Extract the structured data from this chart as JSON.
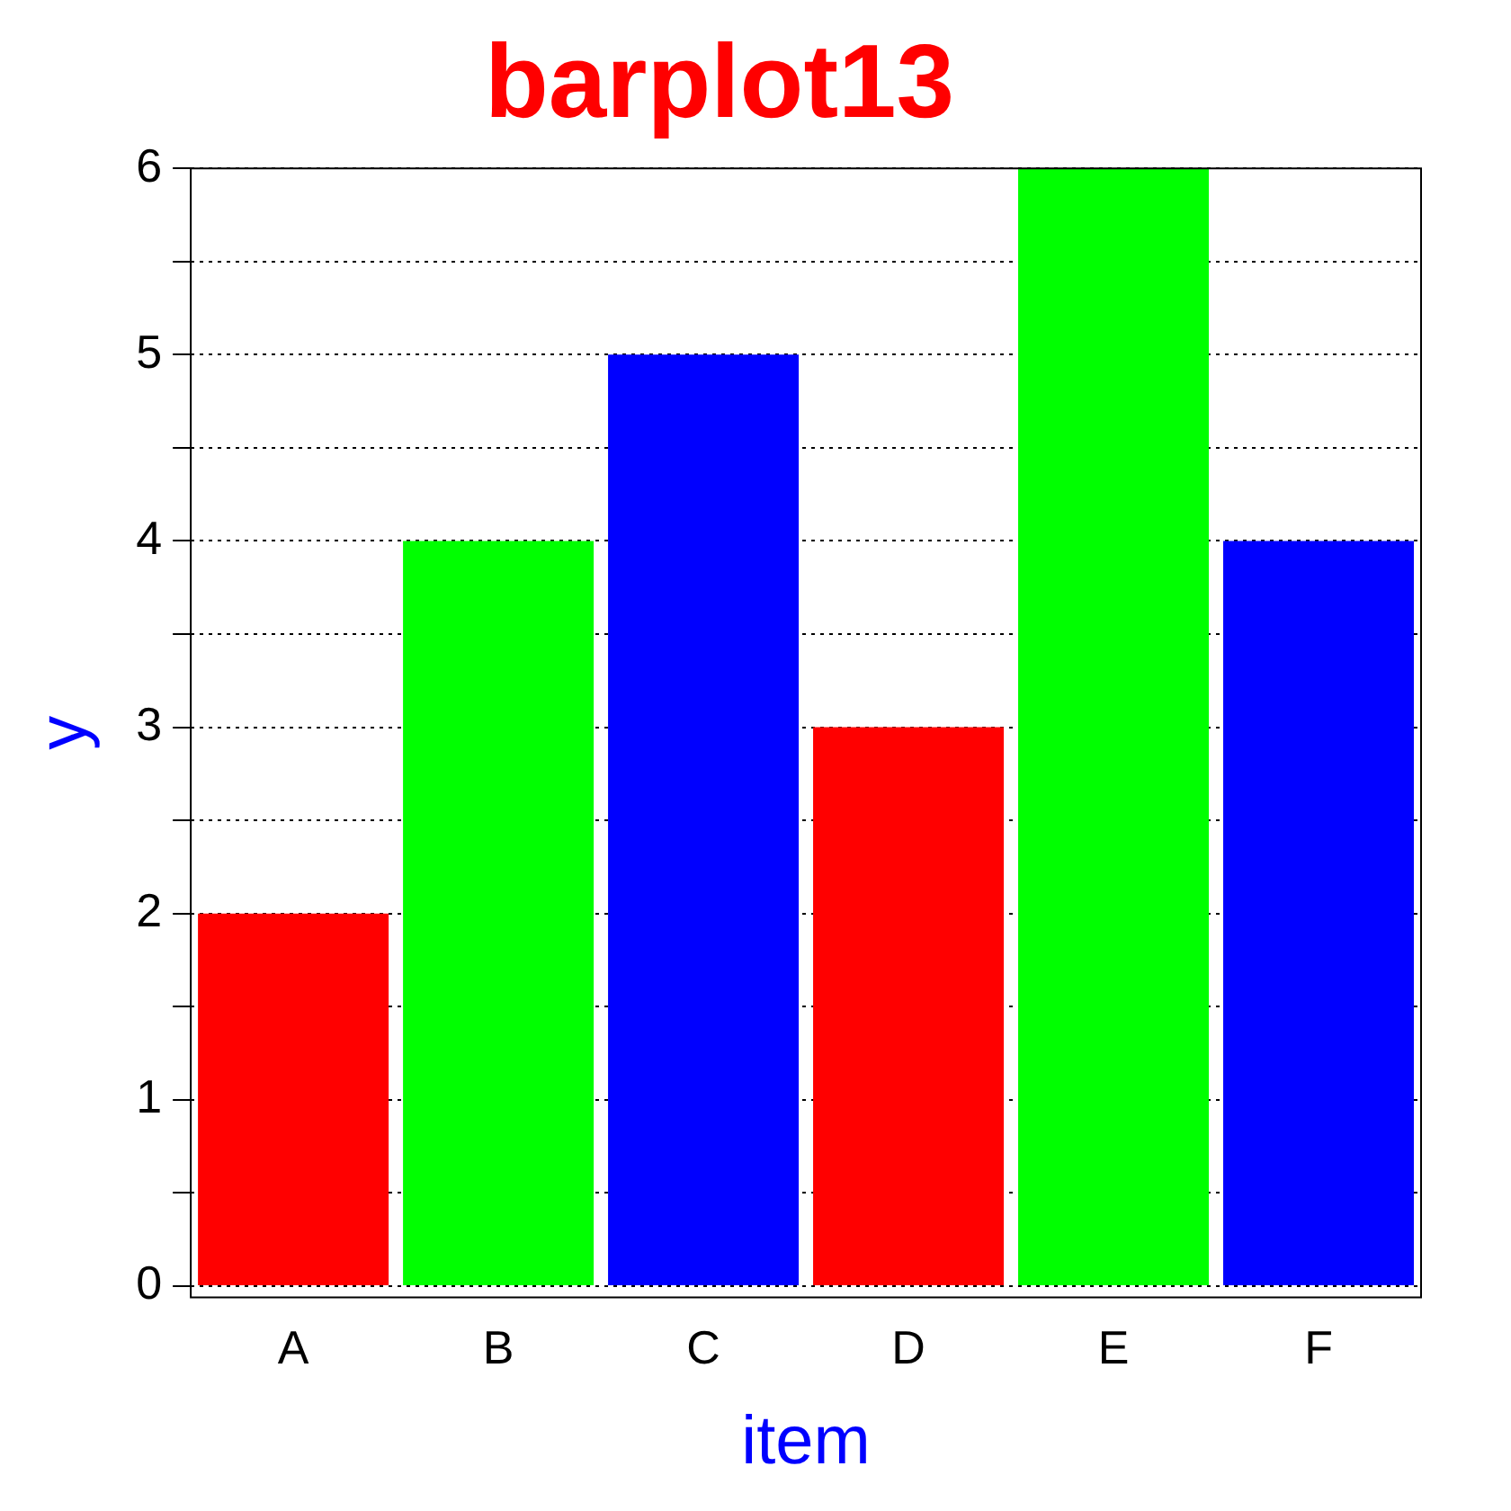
{
  "chart_data": {
    "type": "bar",
    "title": "barplot13",
    "xlabel": "item",
    "ylabel": "y",
    "categories": [
      "A",
      "B",
      "C",
      "D",
      "E",
      "F"
    ],
    "values": [
      2,
      4,
      5,
      3,
      6,
      4
    ],
    "colors": [
      "#ff0000",
      "#00ff00",
      "#0000ff",
      "#ff0000",
      "#00ff00",
      "#0000ff"
    ],
    "ylim": [
      -0.06,
      6
    ],
    "yticks": [
      0,
      {
        "value": 0.5,
        "label": null
      },
      1,
      {
        "value": 1.5,
        "label": null
      },
      2,
      {
        "value": 2.5,
        "label": null
      },
      3,
      {
        "value": 3.5,
        "label": null
      },
      4,
      {
        "value": 4.5,
        "label": null
      },
      5,
      {
        "value": 5.5,
        "label": null
      },
      6
    ],
    "grid": "y"
  }
}
